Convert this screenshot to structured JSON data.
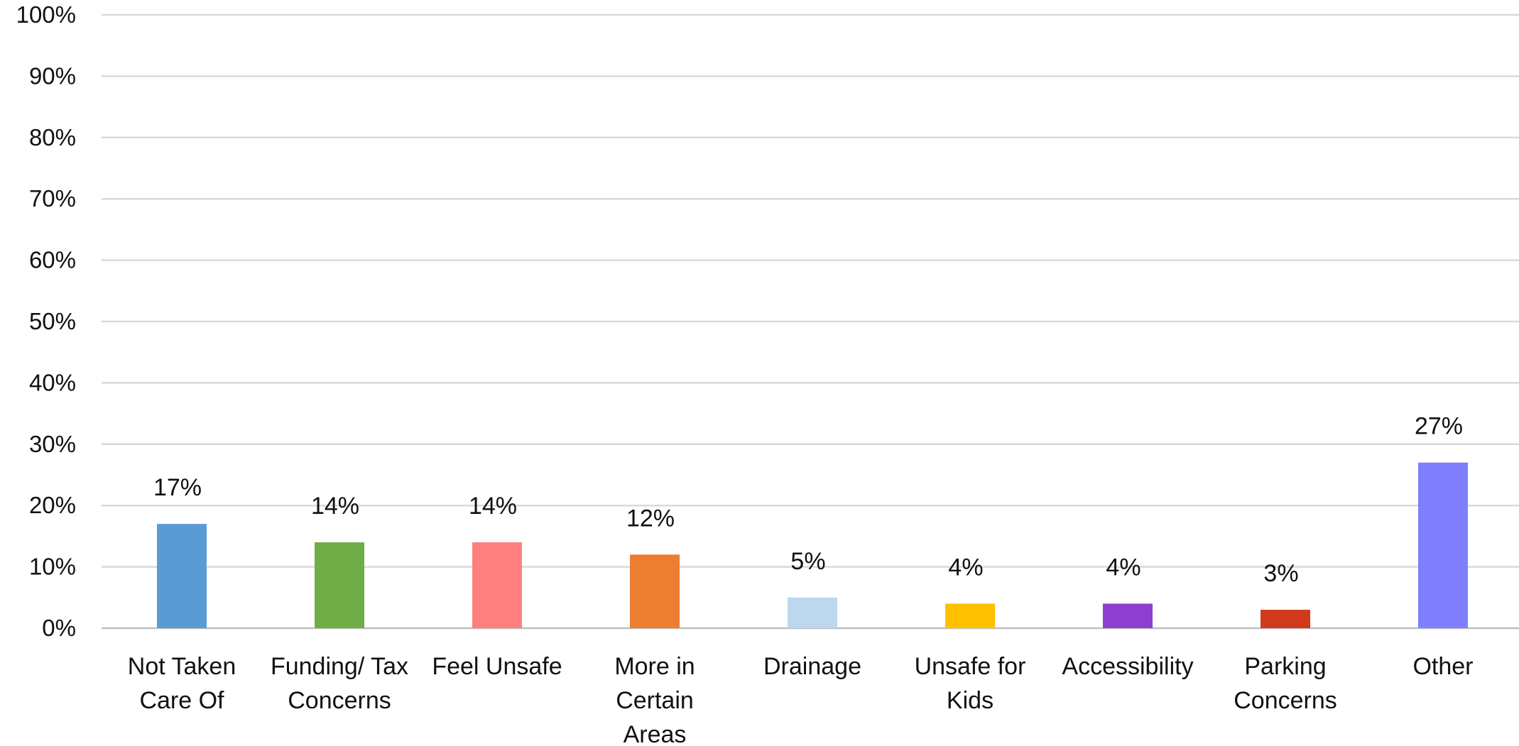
{
  "chart_data": {
    "type": "bar",
    "categories": [
      [
        "Not Taken",
        "Care Of"
      ],
      [
        "Funding/ Tax",
        "Concerns"
      ],
      [
        "Feel Unsafe"
      ],
      [
        "More in",
        "Certain",
        "Areas"
      ],
      [
        "Drainage"
      ],
      [
        "Unsafe for",
        "Kids"
      ],
      [
        "Accessibility"
      ],
      [
        "Parking",
        "Concerns"
      ],
      [
        "Other"
      ]
    ],
    "values": [
      17,
      14,
      14,
      12,
      5,
      4,
      4,
      3,
      27
    ],
    "data_labels": [
      "17%",
      "14%",
      "14%",
      "12%",
      "5%",
      "4%",
      "4%",
      "3%",
      "27%"
    ],
    "colors": [
      "#5b9bd5",
      "#70ad47",
      "#ff7f7f",
      "#ed7d31",
      "#bdd7ee",
      "#ffc000",
      "#8e3fcf",
      "#d0391b",
      "#7f7fff"
    ],
    "ylim": [
      0,
      100
    ],
    "yticks": [
      "0%",
      "10%",
      "20%",
      "30%",
      "40%",
      "50%",
      "60%",
      "70%",
      "80%",
      "90%",
      "100%"
    ],
    "title": "",
    "xlabel": "",
    "ylabel": "",
    "grid": true,
    "legend": "none"
  }
}
